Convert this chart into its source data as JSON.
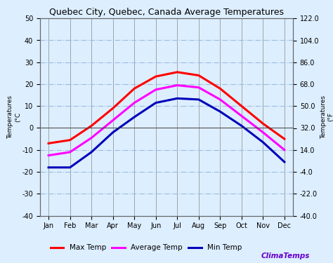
{
  "title": "Quebec City, Quebec, Canada Average Temperatures",
  "months": [
    "Jan",
    "Feb",
    "Mar",
    "Apr",
    "May",
    "Jun",
    "Jul",
    "Aug",
    "Sep",
    "Oct",
    "Nov",
    "Dec"
  ],
  "max_temp": [
    -7.0,
    -5.5,
    1.0,
    9.0,
    18.0,
    23.5,
    25.5,
    24.0,
    18.0,
    10.0,
    2.0,
    -5.0
  ],
  "avg_temp": [
    -12.5,
    -11.0,
    -4.5,
    3.5,
    11.5,
    17.5,
    19.5,
    18.5,
    13.0,
    5.5,
    -2.0,
    -10.0
  ],
  "min_temp": [
    -18.0,
    -18.0,
    -11.0,
    -2.0,
    5.0,
    11.5,
    13.5,
    13.0,
    7.5,
    1.0,
    -6.5,
    -15.5
  ],
  "max_color": "#ff0000",
  "avg_color": "#ff00ff",
  "min_color": "#0000bb",
  "ylim_left": [
    -40,
    50
  ],
  "ylim_right": [
    -40.0,
    122.0
  ],
  "yticks_left": [
    -40,
    -30,
    -20,
    -10,
    0,
    10,
    20,
    30,
    40,
    50
  ],
  "yticks_right": [
    -40.0,
    -22.0,
    -4.0,
    14.0,
    32.0,
    50.0,
    68.0,
    86.0,
    104.0,
    122.0
  ],
  "grid_h_color": "#99bbdd",
  "grid_v_color": "#888888",
  "background_color": "#ddeeff",
  "plot_bg_color": "#ddeeff",
  "climatemps_color": "#6600cc",
  "line_width": 2.2,
  "title_fontsize": 9,
  "tick_fontsize": 7,
  "legend_fontsize": 7.5
}
